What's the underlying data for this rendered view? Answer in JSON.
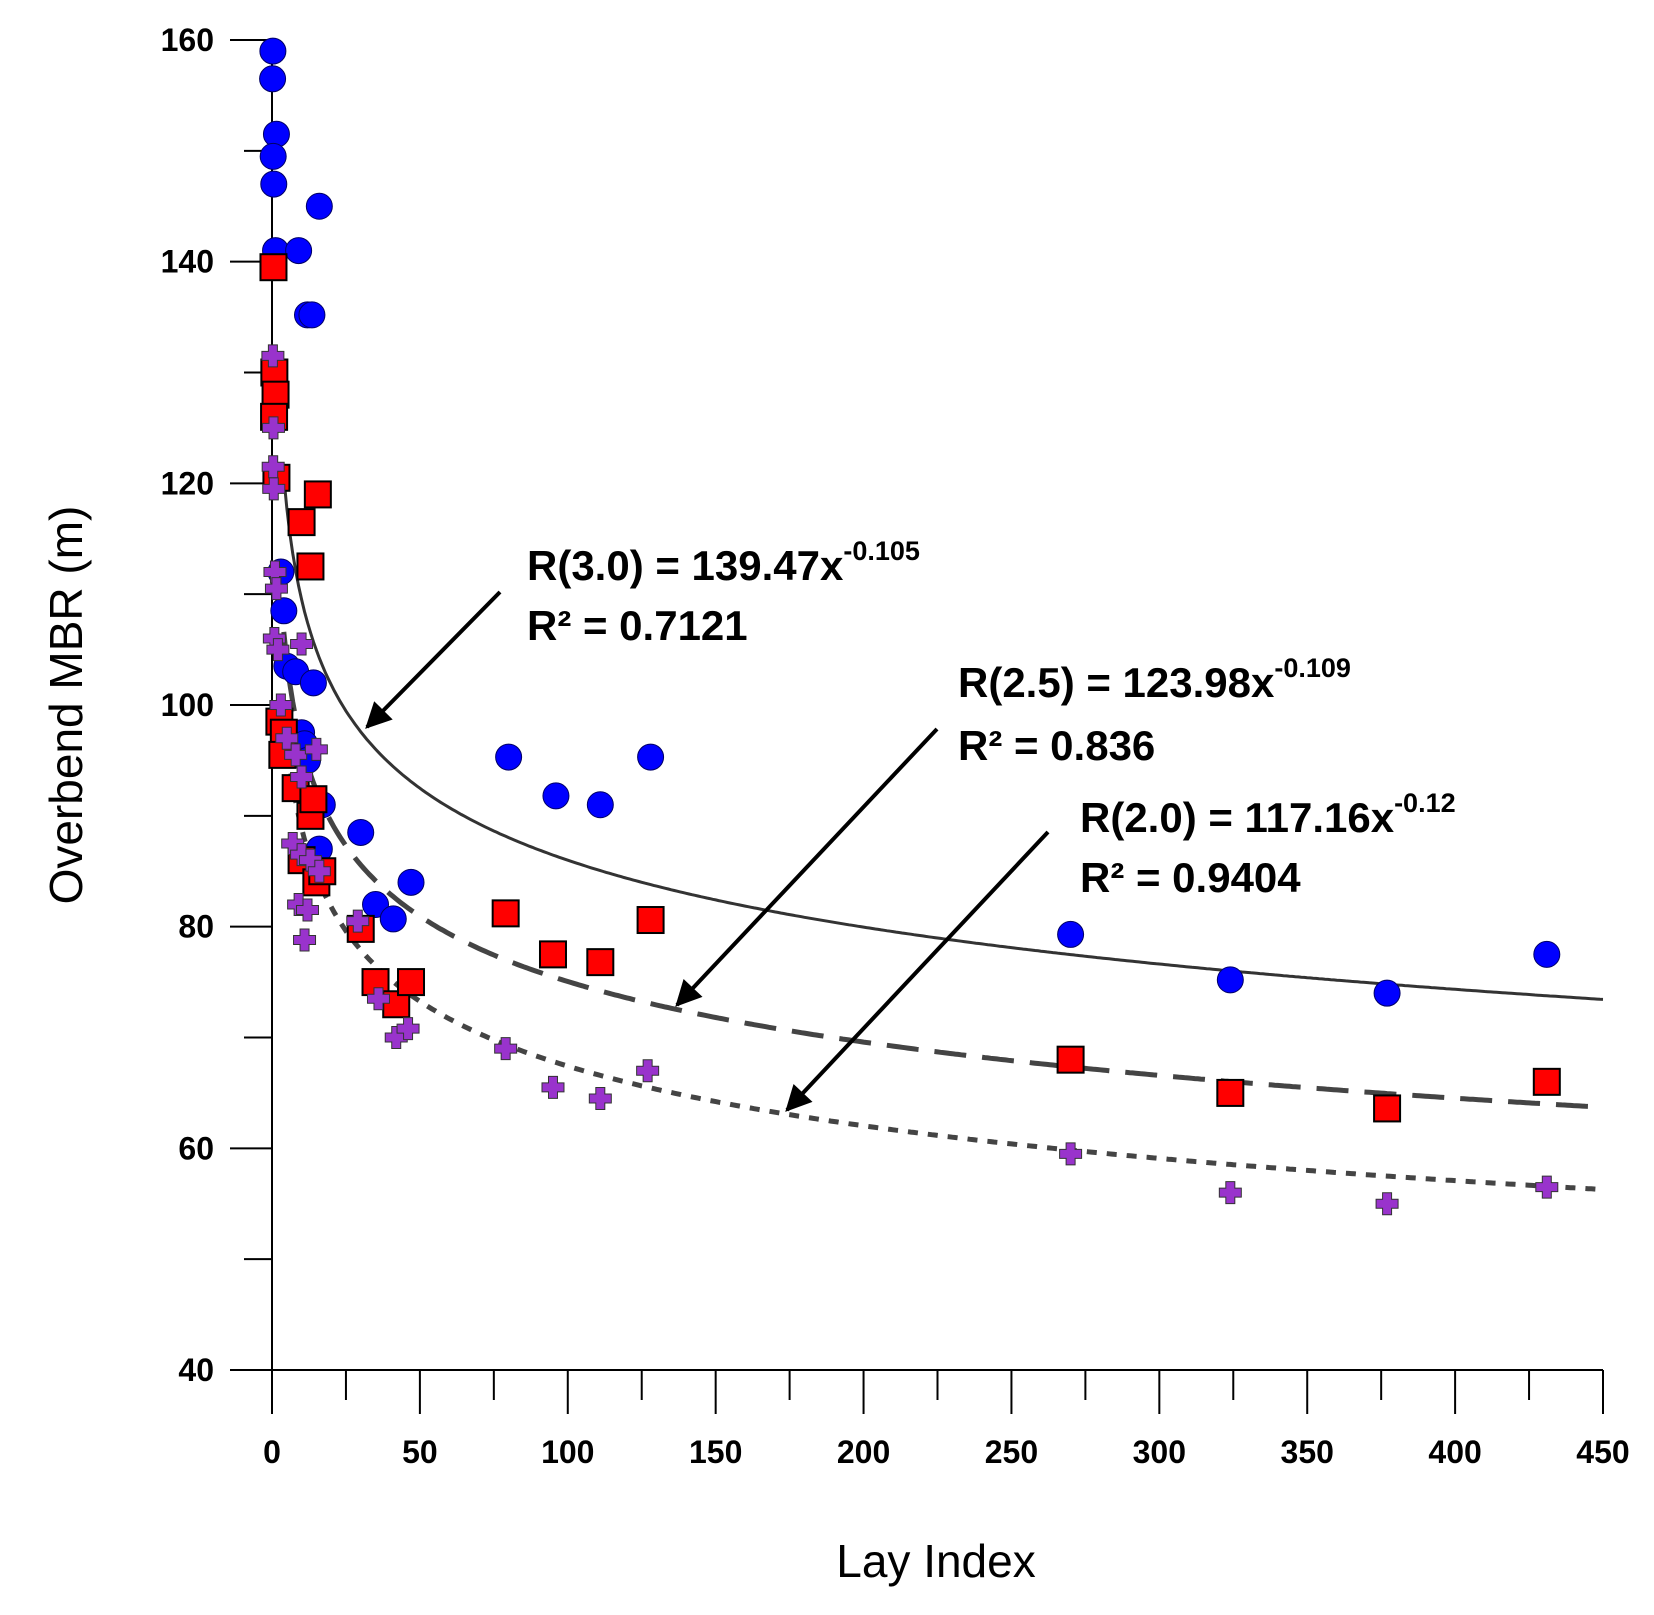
{
  "chart_data": {
    "type": "scatter",
    "xlabel": "Lay Index",
    "ylabel": "Overbend MBR (m)",
    "xlim": [
      0,
      450
    ],
    "ylim": [
      40,
      160
    ],
    "x_ticks": [
      "0",
      "50",
      "100",
      "150",
      "200",
      "250",
      "300",
      "350",
      "400",
      "450"
    ],
    "y_ticks": [
      "40",
      "60",
      "80",
      "100",
      "120",
      "140",
      "160"
    ],
    "grid": false,
    "legend": "none",
    "series": [
      {
        "marker": "circle",
        "color": "#0000ff",
        "points": [
          [
            0.3,
            159
          ],
          [
            0.2,
            156.5
          ],
          [
            1.5,
            151.5
          ],
          [
            0.4,
            149.5
          ],
          [
            0.6,
            147
          ],
          [
            1.2,
            141
          ],
          [
            9,
            141
          ],
          [
            16,
            145
          ],
          [
            12,
            135.2
          ],
          [
            13.5,
            135.2
          ],
          [
            3,
            112
          ],
          [
            4,
            108.5
          ],
          [
            5,
            103.5
          ],
          [
            8,
            103
          ],
          [
            14,
            102
          ],
          [
            10,
            97.5
          ],
          [
            11,
            96.5
          ],
          [
            12,
            95
          ],
          [
            17,
            91
          ],
          [
            16,
            87
          ],
          [
            30,
            88.5
          ],
          [
            35,
            82
          ],
          [
            41,
            80.7
          ],
          [
            47,
            84
          ],
          [
            80,
            95.3
          ],
          [
            96,
            91.8
          ],
          [
            111,
            91
          ],
          [
            128,
            95.3
          ],
          [
            270,
            79.3
          ],
          [
            324,
            75.2
          ],
          [
            377,
            74
          ],
          [
            431,
            77.5
          ]
        ]
      },
      {
        "marker": "square",
        "color": "#ff0000",
        "points": [
          [
            0.5,
            139.5
          ],
          [
            0.8,
            130
          ],
          [
            1.2,
            128
          ],
          [
            0.7,
            126
          ],
          [
            1.5,
            120.5
          ],
          [
            10,
            116.5
          ],
          [
            15.5,
            119
          ],
          [
            13,
            112.5
          ],
          [
            2.5,
            98.5
          ],
          [
            4,
            97.5
          ],
          [
            3.5,
            95.5
          ],
          [
            8,
            92.5
          ],
          [
            13,
            90
          ],
          [
            14,
            91.5
          ],
          [
            10,
            86
          ],
          [
            15,
            84
          ],
          [
            17,
            85
          ],
          [
            30,
            79.8
          ],
          [
            35,
            75
          ],
          [
            42,
            73
          ],
          [
            47,
            75
          ],
          [
            79,
            81.2
          ],
          [
            95,
            77.5
          ],
          [
            111,
            76.8
          ],
          [
            128,
            80.6
          ],
          [
            270,
            68
          ],
          [
            324,
            65
          ],
          [
            377,
            63.6
          ],
          [
            431,
            66
          ]
        ]
      },
      {
        "marker": "cross",
        "color": "#9933cc",
        "points": [
          [
            0.3,
            131.5
          ],
          [
            0.5,
            125
          ],
          [
            0.4,
            121.5
          ],
          [
            0.6,
            119.5
          ],
          [
            1,
            112
          ],
          [
            1.5,
            110.5
          ],
          [
            0.8,
            106
          ],
          [
            2,
            105
          ],
          [
            10,
            105.5
          ],
          [
            3,
            100
          ],
          [
            5,
            97
          ],
          [
            8,
            95.5
          ],
          [
            10,
            93.5
          ],
          [
            15,
            96
          ],
          [
            7,
            87.5
          ],
          [
            10,
            86.5
          ],
          [
            13,
            86
          ],
          [
            16,
            85
          ],
          [
            9,
            82
          ],
          [
            12,
            81.5
          ],
          [
            11,
            78.8
          ],
          [
            29,
            80.5
          ],
          [
            36,
            73.5
          ],
          [
            42,
            70
          ],
          [
            46,
            70.8
          ],
          [
            79,
            69
          ],
          [
            95,
            65.5
          ],
          [
            111,
            64.5
          ],
          [
            127,
            67
          ],
          [
            270,
            59.5
          ],
          [
            324,
            56
          ],
          [
            377,
            55
          ],
          [
            431,
            56.5
          ]
        ]
      }
    ],
    "fits": [
      {
        "label": "R(3.0) = 139.47x",
        "exponent": "-0.105",
        "r2": "R² = 0.7121",
        "a": 139.47,
        "b": -0.105,
        "style": "solid",
        "color": "#333333",
        "x_start": 4
      },
      {
        "label": "R(2.5) = 123.98x",
        "exponent": "-0.109",
        "r2": "R² = 0.836",
        "a": 123.98,
        "b": -0.109,
        "style": "dashed",
        "color": "#444444",
        "x_start": 4
      },
      {
        "label": "R(2.0) = 117.16x",
        "exponent": "-0.12",
        "r2": "R² = 0.9404",
        "a": 117.16,
        "b": -0.12,
        "style": "dotted",
        "color": "#444444",
        "x_start": 4
      }
    ]
  }
}
